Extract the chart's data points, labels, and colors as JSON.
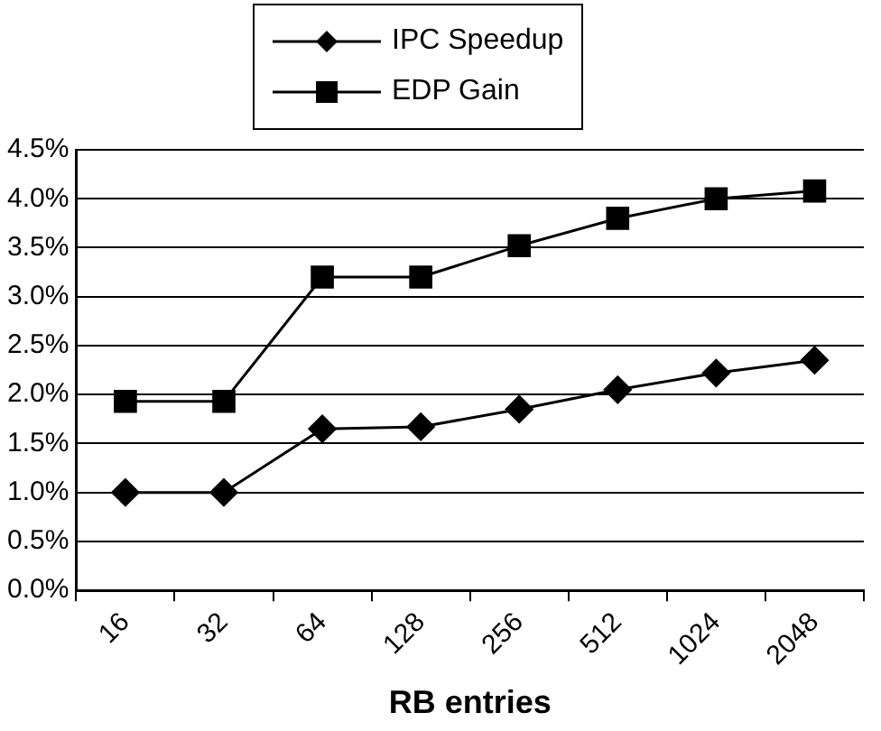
{
  "chart_data": {
    "type": "line",
    "xlabel": "RB entries",
    "categories": [
      "16",
      "32",
      "64",
      "128",
      "256",
      "512",
      "1024",
      "2048"
    ],
    "series": [
      {
        "name": "IPC Speedup",
        "color": "#000000",
        "marker": "diamond",
        "values": [
          1.0,
          1.0,
          1.65,
          1.67,
          1.85,
          2.05,
          2.22,
          2.35
        ]
      },
      {
        "name": "EDP Gain",
        "color": "#000000",
        "marker": "square",
        "values": [
          1.93,
          1.93,
          3.2,
          3.2,
          3.52,
          3.8,
          4.0,
          4.08
        ]
      }
    ],
    "ylim": [
      0,
      4.5
    ],
    "yticks": [
      {
        "value": 0,
        "label": "0.0%"
      },
      {
        "value": 0.5,
        "label": "0.5%"
      },
      {
        "value": 1,
        "label": "1.0%"
      },
      {
        "value": 1.5,
        "label": "1.5%"
      },
      {
        "value": 2,
        "label": "2.0%"
      },
      {
        "value": 2.5,
        "label": "2.5%"
      },
      {
        "value": 3,
        "label": "3.0%"
      },
      {
        "value": 3.5,
        "label": "3.5%"
      },
      {
        "value": 4,
        "label": "4.0%"
      },
      {
        "value": 4.5,
        "label": "4.5%"
      }
    ],
    "grid": "y",
    "legend": "top",
    "line_style": "solid"
  }
}
